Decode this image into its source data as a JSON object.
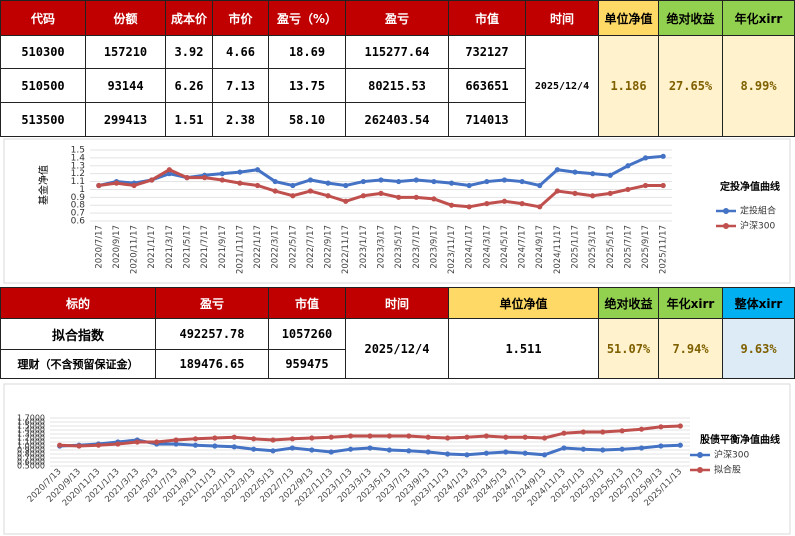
{
  "table1": {
    "headers": [
      "代码",
      "份额",
      "成本价",
      "市价",
      "盈亏（%）",
      "盈亏",
      "市值",
      "时间",
      "单位净值",
      "绝对收益",
      "年化xirr"
    ],
    "rows": [
      [
        "510300",
        "157210",
        "3.92",
        "4.66",
        "18.69",
        "115277.64",
        "732127"
      ],
      [
        "510500",
        "93144",
        "6.26",
        "7.13",
        "13.75",
        "80215.53",
        "663651"
      ],
      [
        "513500",
        "299413",
        "1.51",
        "2.38",
        "58.10",
        "262403.54",
        "714013"
      ]
    ],
    "date": "2025/12/4",
    "unit_nav": "1.186",
    "abs_return": "27.65%",
    "xirr": "8.99%"
  },
  "table2": {
    "headers": [
      "标的",
      "盈亏",
      "市值",
      "时间",
      "单位净值",
      "绝对收益",
      "年化xirr",
      "整体xirr"
    ],
    "rows": [
      [
        "拟合指数",
        "492257.78",
        "1057260"
      ],
      [
        "理财（不含预留保证金）",
        "189476.65",
        "959475"
      ]
    ],
    "date": "2025/12/4",
    "unit_nav": "1.511",
    "abs_return": "51.07%",
    "xirr": "7.94%",
    "overall_xirr": "9.63%"
  },
  "chart_data": [
    {
      "type": "line",
      "title": "定投净值曲线",
      "y_label": "基金净值",
      "categories": [
        "2020/7/17",
        "2020/9/17",
        "2020/11/17",
        "2021/1/17",
        "2021/3/17",
        "2021/5/17",
        "2021/7/17",
        "2021/9/17",
        "2021/11/17",
        "2022/1/17",
        "2022/3/17",
        "2022/5/17",
        "2022/7/17",
        "2022/9/17",
        "2022/11/17",
        "2023/1/17",
        "2023/3/17",
        "2023/5/17",
        "2023/7/17",
        "2023/9/17",
        "2023/11/17",
        "2024/1/17",
        "2024/3/17",
        "2024/5/17",
        "2024/7/17",
        "2024/9/17",
        "2024/11/17",
        "2025/1/17",
        "2025/3/17",
        "2025/5/17",
        "2025/7/17",
        "2025/9/17",
        "2025/11/17"
      ],
      "series": [
        {
          "name": "定投組合",
          "color": "#4472c4",
          "values": [
            1.05,
            1.1,
            1.08,
            1.12,
            1.2,
            1.15,
            1.18,
            1.2,
            1.22,
            1.25,
            1.1,
            1.05,
            1.12,
            1.08,
            1.05,
            1.1,
            1.12,
            1.1,
            1.12,
            1.1,
            1.08,
            1.05,
            1.1,
            1.12,
            1.1,
            1.05,
            1.25,
            1.22,
            1.2,
            1.18,
            1.3,
            1.4,
            1.42
          ]
        },
        {
          "name": "沪深300",
          "color": "#c0504d",
          "values": [
            1.05,
            1.08,
            1.05,
            1.12,
            1.25,
            1.15,
            1.15,
            1.12,
            1.08,
            1.05,
            0.98,
            0.92,
            0.98,
            0.92,
            0.85,
            0.92,
            0.95,
            0.9,
            0.9,
            0.88,
            0.8,
            0.78,
            0.82,
            0.85,
            0.82,
            0.78,
            0.98,
            0.95,
            0.92,
            0.95,
            1.0,
            1.05,
            1.05
          ]
        }
      ],
      "ylim": [
        0.6,
        1.5
      ],
      "yticks": [
        0.6,
        0.7,
        0.8,
        0.9,
        1,
        1.1,
        1.2,
        1.3,
        1.4,
        1.5
      ],
      "grid": true,
      "legend": "right"
    },
    {
      "type": "line",
      "title": "股债平衡净值曲线",
      "categories": [
        "2020/7/13",
        "2020/9/13",
        "2020/11/13",
        "2021/1/13",
        "2021/3/13",
        "2021/5/13",
        "2021/7/13",
        "2021/9/13",
        "2021/11/13",
        "2022/1/13",
        "2022/3/13",
        "2022/5/13",
        "2022/7/13",
        "2022/9/13",
        "2022/11/13",
        "2023/1/13",
        "2023/3/13",
        "2023/5/13",
        "2023/7/13",
        "2023/9/13",
        "2023/11/13",
        "2024/1/13",
        "2024/3/13",
        "2024/5/13",
        "2024/7/13",
        "2024/9/13",
        "2024/11/13",
        "2025/1/13",
        "2025/3/13",
        "2025/5/13",
        "2025/7/13",
        "2025/9/13",
        "2025/11/13"
      ],
      "series": [
        {
          "name": "沪深300",
          "color": "#4472c4",
          "values": [
            1.0,
            1.02,
            1.05,
            1.1,
            1.15,
            1.05,
            1.05,
            1.02,
            1.0,
            0.98,
            0.92,
            0.88,
            0.95,
            0.9,
            0.85,
            0.92,
            0.95,
            0.9,
            0.88,
            0.85,
            0.8,
            0.78,
            0.82,
            0.85,
            0.82,
            0.78,
            0.95,
            0.92,
            0.9,
            0.92,
            0.95,
            1.0,
            1.02
          ]
        },
        {
          "name": "拟合股",
          "color": "#c0504d",
          "values": [
            1.02,
            1.0,
            1.02,
            1.05,
            1.1,
            1.1,
            1.15,
            1.18,
            1.2,
            1.22,
            1.18,
            1.15,
            1.18,
            1.2,
            1.22,
            1.25,
            1.25,
            1.25,
            1.25,
            1.22,
            1.2,
            1.22,
            1.25,
            1.22,
            1.22,
            1.2,
            1.32,
            1.35,
            1.35,
            1.38,
            1.42,
            1.48,
            1.5
          ]
        }
      ],
      "ylim": [
        0.5,
        1.7
      ],
      "yticks": [
        {
          "value": 0.5,
          "label": "0.5000"
        },
        {
          "value": 0.6,
          "label": "0.6000"
        },
        {
          "value": 0.7,
          "label": "0.7000"
        },
        {
          "value": 0.8,
          "label": "0.8000"
        },
        {
          "value": 0.9,
          "label": "0.9000"
        },
        {
          "value": 1,
          "label": "1.0000"
        },
        {
          "value": 1.1,
          "label": "1.1000"
        },
        {
          "value": 1.2,
          "label": "1.2000"
        },
        {
          "value": 1.3,
          "label": "1.3000"
        },
        {
          "value": 1.4,
          "label": "1.4000"
        },
        {
          "value": 1.5,
          "label": "1.5000"
        },
        {
          "value": 1.6,
          "label": "1.6000"
        },
        {
          "value": 1.7,
          "label": "1.7000"
        }
      ],
      "grid": true,
      "legend": "right"
    }
  ]
}
